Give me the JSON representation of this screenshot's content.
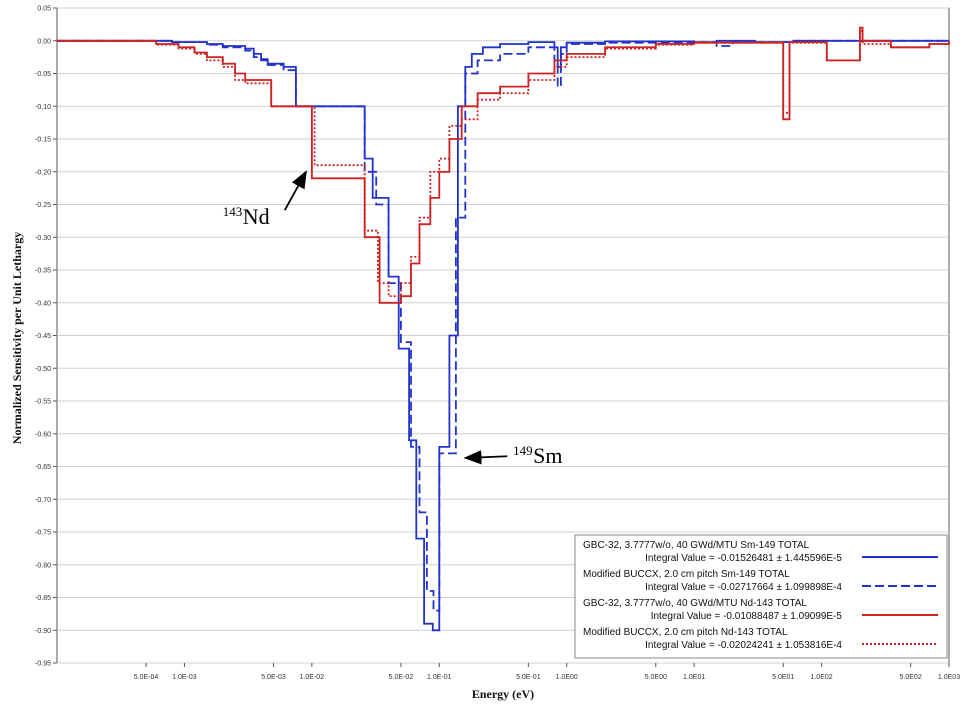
{
  "chart_data": {
    "type": "line",
    "xlabel": "Energy (eV)",
    "ylabel": "Normalized Sensitivity per Unit Lethargy",
    "x_scale": "log",
    "xlim": [
      0.0001,
      1000
    ],
    "ylim": [
      -0.95,
      0.05
    ],
    "x_ticks": [
      {
        "v": 0.0005,
        "label": "5.0E-04"
      },
      {
        "v": 0.001,
        "label": "1.0E-03"
      },
      {
        "v": 0.005,
        "label": "5.0E-03"
      },
      {
        "v": 0.01,
        "label": "1.0E-02"
      },
      {
        "v": 0.05,
        "label": "5.0E-02"
      },
      {
        "v": 0.1,
        "label": "1.0E-01"
      },
      {
        "v": 0.5,
        "label": "5.0E-01"
      },
      {
        "v": 1,
        "label": "1.0E00"
      },
      {
        "v": 5,
        "label": "5.0E00"
      },
      {
        "v": 10,
        "label": "1.0E01"
      },
      {
        "v": 50,
        "label": "5.0E01"
      },
      {
        "v": 100,
        "label": "1.0E02"
      },
      {
        "v": 500,
        "label": "5.0E02"
      },
      {
        "v": 1000,
        "label": "1.0E03"
      }
    ],
    "y_ticks": [
      {
        "v": 0.05,
        "label": "0.05"
      },
      {
        "v": 0.0,
        "label": "0.00"
      },
      {
        "v": -0.05,
        "label": "-0.05"
      },
      {
        "v": -0.1,
        "label": "-0.10"
      },
      {
        "v": -0.15,
        "label": "-0.15"
      },
      {
        "v": -0.2,
        "label": "-0.20"
      },
      {
        "v": -0.25,
        "label": "-0.25"
      },
      {
        "v": -0.3,
        "label": "-0.30"
      },
      {
        "v": -0.35,
        "label": "-0.35"
      },
      {
        "v": -0.4,
        "label": "-0.40"
      },
      {
        "v": -0.45,
        "label": "-0.45"
      },
      {
        "v": -0.5,
        "label": "-0.50"
      },
      {
        "v": -0.55,
        "label": "-0.55"
      },
      {
        "v": -0.6,
        "label": "-0.60"
      },
      {
        "v": -0.65,
        "label": "-0.65"
      },
      {
        "v": -0.7,
        "label": "-0.70"
      },
      {
        "v": -0.75,
        "label": "-0.75"
      },
      {
        "v": -0.8,
        "label": "-0.80"
      },
      {
        "v": -0.85,
        "label": "-0.85"
      },
      {
        "v": -0.9,
        "label": "-0.90"
      },
      {
        "v": -0.95,
        "label": "-0.95"
      }
    ],
    "grid": "horizontal",
    "legend_position": "bottom-right",
    "annotations": [
      {
        "sup": "143",
        "text": "Nd",
        "x": 0.002,
        "y": -0.28,
        "arrow_to": [
          0.009,
          -0.2
        ]
      },
      {
        "sup": "149",
        "text": "Sm",
        "x": 0.38,
        "y": -0.645,
        "arrow_to": [
          0.16,
          -0.637
        ]
      }
    ],
    "series": [
      {
        "name": "GBC-32, 3.7777w/o, 40 GWd/MTU Sm-149 TOTAL",
        "integral": "Integral Value = -0.01526481 ± 1.445596E-5",
        "color": "#2233cc",
        "dash": "solid",
        "steps": [
          [
            0.0001,
            0.0
          ],
          [
            0.0004,
            0.0
          ],
          [
            0.0008,
            -0.002
          ],
          [
            0.0015,
            -0.005
          ],
          [
            0.002,
            -0.008
          ],
          [
            0.003,
            -0.012
          ],
          [
            0.0035,
            -0.02
          ],
          [
            0.004,
            -0.028
          ],
          [
            0.0045,
            -0.035
          ],
          [
            0.006,
            -0.04
          ],
          [
            0.0075,
            -0.1
          ],
          [
            0.026,
            -0.18
          ],
          [
            0.03,
            -0.24
          ],
          [
            0.04,
            -0.36
          ],
          [
            0.048,
            -0.47
          ],
          [
            0.058,
            -0.61
          ],
          [
            0.066,
            -0.76
          ],
          [
            0.076,
            -0.89
          ],
          [
            0.089,
            -0.9
          ],
          [
            0.1,
            -0.62
          ],
          [
            0.12,
            -0.45
          ],
          [
            0.14,
            -0.1
          ],
          [
            0.16,
            -0.04
          ],
          [
            0.18,
            -0.02
          ],
          [
            0.22,
            -0.01
          ],
          [
            0.3,
            -0.005
          ],
          [
            0.5,
            -0.002
          ],
          [
            0.8,
            -0.01
          ],
          [
            0.85,
            -0.04
          ],
          [
            0.9,
            -0.01
          ],
          [
            1.0,
            -0.003
          ],
          [
            2,
            -0.001
          ],
          [
            10,
            -0.002
          ],
          [
            15,
            0.0
          ],
          [
            30,
            -0.002
          ],
          [
            60,
            0.0
          ],
          [
            1000,
            0.0
          ]
        ]
      },
      {
        "name": "Modified BUCCX, 2.0 cm pitch Sm-149 TOTAL",
        "integral": "Integral Value = -0.02717664 ± 1.099898E-4",
        "color": "#2233cc",
        "dash": "dashed",
        "steps": [
          [
            0.0001,
            0.0
          ],
          [
            0.0004,
            0.0
          ],
          [
            0.0008,
            -0.002
          ],
          [
            0.0015,
            -0.006
          ],
          [
            0.002,
            -0.01
          ],
          [
            0.003,
            -0.015
          ],
          [
            0.0035,
            -0.025
          ],
          [
            0.004,
            -0.03
          ],
          [
            0.0045,
            -0.037
          ],
          [
            0.006,
            -0.045
          ],
          [
            0.0075,
            -0.1
          ],
          [
            0.026,
            -0.2
          ],
          [
            0.032,
            -0.25
          ],
          [
            0.04,
            -0.37
          ],
          [
            0.05,
            -0.46
          ],
          [
            0.06,
            -0.62
          ],
          [
            0.07,
            -0.72
          ],
          [
            0.08,
            -0.84
          ],
          [
            0.09,
            -0.87
          ],
          [
            0.1,
            -0.63
          ],
          [
            0.125,
            -0.63
          ],
          [
            0.135,
            -0.27
          ],
          [
            0.16,
            -0.05
          ],
          [
            0.2,
            -0.03
          ],
          [
            0.3,
            -0.02
          ],
          [
            0.5,
            -0.01
          ],
          [
            0.8,
            -0.03
          ],
          [
            0.85,
            -0.07
          ],
          [
            0.9,
            -0.02
          ],
          [
            1.0,
            -0.005
          ],
          [
            2,
            -0.003
          ],
          [
            10,
            -0.002
          ],
          [
            15,
            -0.008
          ],
          [
            20,
            -0.002
          ],
          [
            60,
            0.0
          ],
          [
            1000,
            0.0
          ]
        ]
      },
      {
        "name": "GBC-32, 3.7777w/o, 40 GWd/MTU Nd-143 TOTAL",
        "integral": "Integral Value = -0.01088487 ± 1.09099E-5",
        "color": "#cc2222",
        "dash": "solid",
        "steps": [
          [
            0.0001,
            0.0
          ],
          [
            0.0003,
            0.0
          ],
          [
            0.0006,
            -0.005
          ],
          [
            0.0009,
            -0.01
          ],
          [
            0.0012,
            -0.018
          ],
          [
            0.0015,
            -0.025
          ],
          [
            0.002,
            -0.035
          ],
          [
            0.0025,
            -0.05
          ],
          [
            0.003,
            -0.06
          ],
          [
            0.0048,
            -0.1
          ],
          [
            0.01,
            -0.21
          ],
          [
            0.026,
            -0.3
          ],
          [
            0.034,
            -0.4
          ],
          [
            0.043,
            -0.4
          ],
          [
            0.05,
            -0.39
          ],
          [
            0.06,
            -0.34
          ],
          [
            0.07,
            -0.28
          ],
          [
            0.085,
            -0.24
          ],
          [
            0.1,
            -0.2
          ],
          [
            0.12,
            -0.15
          ],
          [
            0.15,
            -0.1
          ],
          [
            0.2,
            -0.08
          ],
          [
            0.3,
            -0.07
          ],
          [
            0.5,
            -0.05
          ],
          [
            0.8,
            -0.03
          ],
          [
            1,
            -0.02
          ],
          [
            2,
            -0.01
          ],
          [
            5,
            -0.005
          ],
          [
            10,
            -0.003
          ],
          [
            50,
            -0.12
          ],
          [
            56,
            -0.002
          ],
          [
            110,
            -0.03
          ],
          [
            200,
            0.02
          ],
          [
            210,
            0.0
          ],
          [
            350,
            -0.01
          ],
          [
            700,
            -0.005
          ],
          [
            1000,
            0.0
          ]
        ]
      },
      {
        "name": "Modified BUCCX, 2.0 cm pitch Nd-143 TOTAL",
        "integral": "Integral Value = -0.02024241 ± 1.053816E-4",
        "color": "#cc2222",
        "dash": "dotted",
        "steps": [
          [
            0.0001,
            0.0
          ],
          [
            0.0003,
            0.0
          ],
          [
            0.0006,
            -0.006
          ],
          [
            0.0009,
            -0.012
          ],
          [
            0.0012,
            -0.02
          ],
          [
            0.0015,
            -0.03
          ],
          [
            0.002,
            -0.04
          ],
          [
            0.0025,
            -0.06
          ],
          [
            0.003,
            -0.065
          ],
          [
            0.0048,
            -0.1
          ],
          [
            0.0105,
            -0.19
          ],
          [
            0.026,
            -0.29
          ],
          [
            0.033,
            -0.37
          ],
          [
            0.04,
            -0.39
          ],
          [
            0.05,
            -0.37
          ],
          [
            0.06,
            -0.33
          ],
          [
            0.07,
            -0.27
          ],
          [
            0.085,
            -0.2
          ],
          [
            0.1,
            -0.18
          ],
          [
            0.12,
            -0.13
          ],
          [
            0.15,
            -0.12
          ],
          [
            0.2,
            -0.09
          ],
          [
            0.3,
            -0.08
          ],
          [
            0.5,
            -0.06
          ],
          [
            0.8,
            -0.04
          ],
          [
            1,
            -0.025
          ],
          [
            2,
            -0.012
          ],
          [
            5,
            -0.006
          ],
          [
            10,
            -0.003
          ],
          [
            50,
            -0.11
          ],
          [
            56,
            -0.003
          ],
          [
            110,
            -0.03
          ],
          [
            200,
            0.015
          ],
          [
            210,
            -0.005
          ],
          [
            350,
            -0.01
          ],
          [
            700,
            -0.005
          ],
          [
            1000,
            0.0
          ]
        ]
      }
    ]
  }
}
